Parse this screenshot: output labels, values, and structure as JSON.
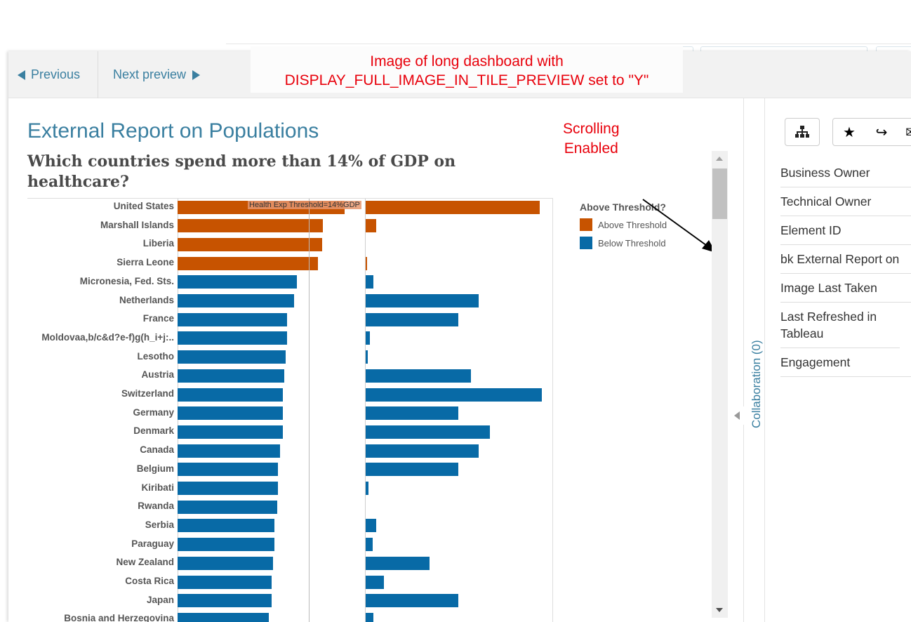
{
  "annotation": {
    "line1": "Image of long dashboard with",
    "line2": "DISPLAY_FULL_IMAGE_IN_TILE_PREVIEW set to \"Y\"",
    "scroll_note_1": "Scrolling",
    "scroll_note_2": "Enabled"
  },
  "nav": {
    "previous": "Previous",
    "next": "Next preview"
  },
  "report": {
    "title": "External Report on Populations",
    "question": "Which countries spend more than 14% of GDP on healthcare?"
  },
  "colors": {
    "above": "#c75300",
    "below": "#086aa6",
    "accent": "#3a7fa0",
    "annotation": "#e8000b"
  },
  "chart_data": {
    "type": "bar",
    "orientation": "horizontal",
    "threshold_label": "Health Exp Threshold=14%GDP",
    "threshold": 14,
    "legend": {
      "title": "Above Threshold?",
      "items": [
        "Above Threshold",
        "Below Threshold"
      ],
      "placement": "right"
    },
    "categories": [
      "United States",
      "Marshall Islands",
      "Liberia",
      "Sierra Leone",
      "Micronesia, Fed. Sts.",
      "Netherlands",
      "France",
      "Moldovaa,b/c&d?e-f)g(h_i+j:..",
      "Lesotho",
      "Austria",
      "Switzerland",
      "Germany",
      "Denmark",
      "Canada",
      "Belgium",
      "Kiribati",
      "Rwanda",
      "Serbia",
      "Paraguay",
      "New Zealand",
      "Costa Rica",
      "Japan",
      "Bosnia and Herzegovina"
    ],
    "group": [
      "Above Threshold",
      "Above Threshold",
      "Above Threshold",
      "Above Threshold",
      "Below Threshold",
      "Below Threshold",
      "Below Threshold",
      "Below Threshold",
      "Below Threshold",
      "Below Threshold",
      "Below Threshold",
      "Below Threshold",
      "Below Threshold",
      "Below Threshold",
      "Below Threshold",
      "Below Threshold",
      "Below Threshold",
      "Below Threshold",
      "Below Threshold",
      "Below Threshold",
      "Below Threshold",
      "Below Threshold",
      "Below Threshold"
    ],
    "series": [
      {
        "values": [
          17.8,
          15.5,
          15.4,
          15.0,
          12.7,
          12.4,
          11.7,
          11.7,
          11.5,
          11.4,
          11.2,
          11.2,
          11.2,
          10.9,
          10.7,
          10.7,
          10.6,
          10.3,
          10.3,
          10.2,
          10.0,
          10.0,
          9.7
        ]
      },
      {
        "values": [
          9400,
          570,
          0,
          90,
          420,
          6100,
          5000,
          230,
          100,
          5700,
          9500,
          5000,
          6700,
          6100,
          5000,
          150,
          0,
          570,
          380,
          3450,
          990,
          5000,
          420
        ]
      }
    ],
    "grid": false
  },
  "collaboration": "Collaboration (0)",
  "right_panel": {
    "icons": [
      "hierarchy-icon",
      "star-icon",
      "share-icon",
      "envelope-icon"
    ],
    "items": [
      "Business Owner",
      "Technical Owner",
      "Element ID",
      "bk External Report on",
      "Image Last Taken",
      "Last Refreshed in Tableau",
      "Engagement"
    ]
  }
}
